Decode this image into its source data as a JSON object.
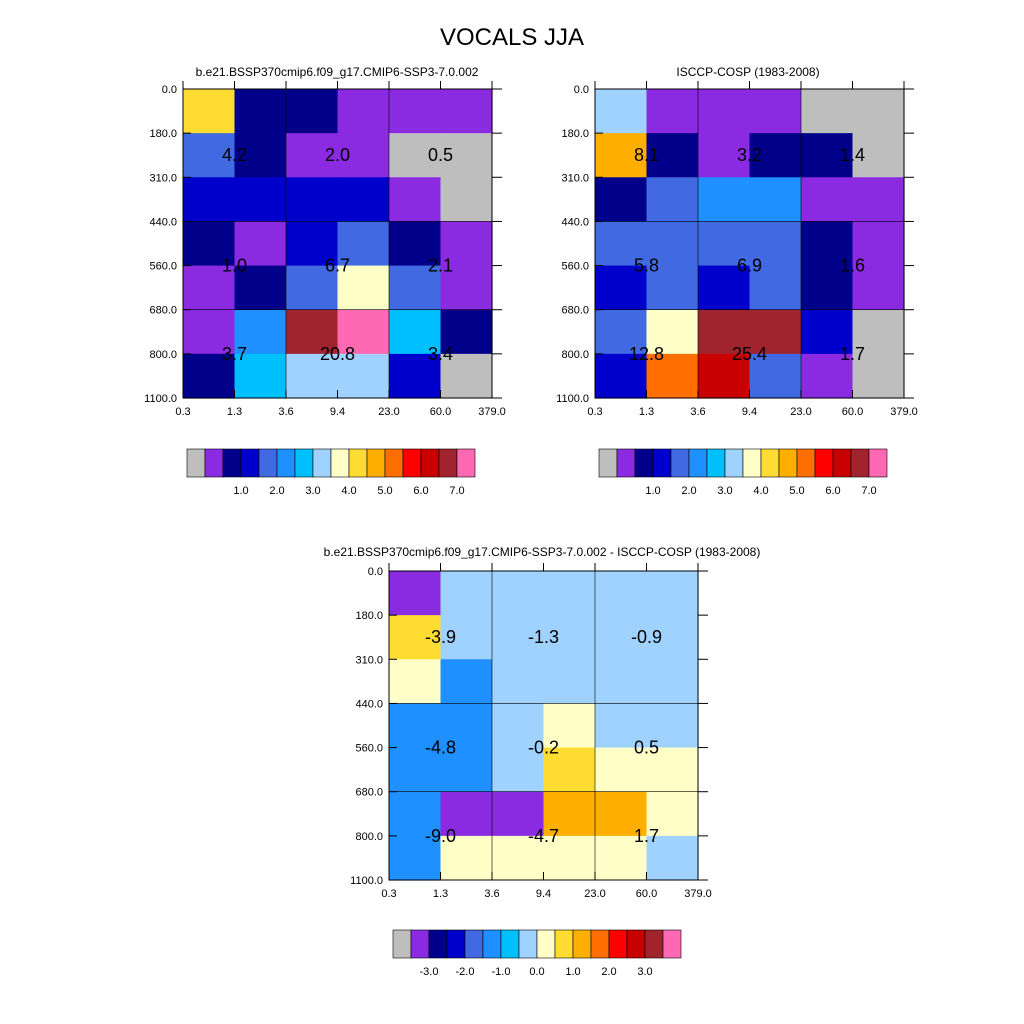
{
  "figure_title": "VOCALS JJA",
  "chart_data": [
    {
      "type": "heatmap",
      "title": "b.e21.BSSP370cmip6.f09_g17.CMIP6-SSP3-7.0.002",
      "x_tick_labels": [
        "0.3",
        "1.3",
        "3.6",
        "9.4",
        "23.0",
        "60.0",
        "379.0"
      ],
      "y_tick_labels": [
        "0.0",
        "180.0",
        "310.0",
        "440.0",
        "560.0",
        "680.0",
        "800.0",
        "1100.0"
      ],
      "bin_values": [
        [
          4.3,
          0.6,
          0.6,
          0.2,
          0.2,
          0.4
        ],
        [
          1.6,
          0.6,
          0.4,
          0.3,
          0.1,
          0.1
        ],
        [
          1.1,
          1.0,
          1.4,
          1.3,
          0.3,
          0.1
        ],
        [
          0.5,
          0.2,
          1.1,
          1.8,
          0.8,
          0.3
        ],
        [
          0.2,
          0.5,
          1.7,
          3.8,
          1.6,
          0.4
        ],
        [
          0.3,
          2.3,
          6.5,
          7.5,
          2.5,
          0.5
        ],
        [
          0.5,
          2.5,
          3.1,
          3.3,
          1.3,
          0.1
        ]
      ],
      "group_labels": [
        [
          "4.2",
          "2.0",
          "0.5"
        ],
        [
          "1.0",
          "6.7",
          "2.1"
        ],
        [
          "3.7",
          "20.8",
          "3.4"
        ]
      ],
      "colorbar": {
        "colors": [
          "#bebebe",
          "#8a2be2",
          "#00008b",
          "#0000cd",
          "#4169e1",
          "#1e90ff",
          "#00bfff",
          "#a0d2ff",
          "#ffffc8",
          "#ffdc32",
          "#ffaf00",
          "#ff6e00",
          "#ff0000",
          "#c80000",
          "#a0232d",
          "#ff69b4"
        ],
        "levels": [
          0.2,
          0.5,
          1.0,
          1.5,
          2.0,
          2.5,
          3.0,
          3.5,
          4.0,
          4.5,
          5.0,
          5.5,
          6.0,
          6.5,
          7.0
        ],
        "tick_labels": [
          "1.0",
          "2.0",
          "3.0",
          "4.0",
          "5.0",
          "6.0",
          "7.0"
        ],
        "tick_levels": [
          1,
          2,
          3,
          4,
          5,
          6,
          7
        ]
      }
    },
    {
      "type": "heatmap",
      "title": "ISCCP-COSP (1983-2008)",
      "x_tick_labels": [
        "0.3",
        "1.3",
        "3.6",
        "9.4",
        "23.0",
        "60.0",
        "379.0"
      ],
      "y_tick_labels": [
        "0.0",
        "180.0",
        "310.0",
        "440.0",
        "560.0",
        "680.0",
        "800.0",
        "1100.0"
      ],
      "bin_values": [
        [
          3.4,
          0.2,
          0.3,
          0.2,
          0.1,
          0.1
        ],
        [
          4.5,
          0.8,
          0.4,
          0.6,
          0.6,
          0.1
        ],
        [
          0.6,
          1.8,
          2.2,
          2.2,
          0.4,
          0.4
        ],
        [
          1.5,
          1.6,
          1.6,
          1.6,
          0.5,
          0.4
        ],
        [
          1.4,
          1.7,
          1.4,
          1.6,
          0.6,
          0.3
        ],
        [
          1.7,
          3.8,
          6.6,
          6.5,
          1.3,
          0.1
        ],
        [
          1.3,
          5.4,
          6.0,
          1.8,
          0.4,
          0.1
        ]
      ],
      "group_labels": [
        [
          "8.1",
          "3.2",
          "1.4"
        ],
        [
          "5.8",
          "6.9",
          "1.6"
        ],
        [
          "12.8",
          "25.4",
          "1.7"
        ]
      ],
      "colorbar": {
        "colors": [
          "#bebebe",
          "#8a2be2",
          "#00008b",
          "#0000cd",
          "#4169e1",
          "#1e90ff",
          "#00bfff",
          "#a0d2ff",
          "#ffffc8",
          "#ffdc32",
          "#ffaf00",
          "#ff6e00",
          "#ff0000",
          "#c80000",
          "#a0232d",
          "#ff69b4"
        ],
        "levels": [
          0.2,
          0.5,
          1.0,
          1.5,
          2.0,
          2.5,
          3.0,
          3.5,
          4.0,
          4.5,
          5.0,
          5.5,
          6.0,
          6.5,
          7.0
        ],
        "tick_labels": [
          "1.0",
          "2.0",
          "3.0",
          "4.0",
          "5.0",
          "6.0",
          "7.0"
        ],
        "tick_levels": [
          1,
          2,
          3,
          4,
          5,
          6,
          7
        ]
      }
    },
    {
      "type": "heatmap",
      "title": "b.e21.BSSP370cmip6.f09_g17.CMIP6-SSP3-7.0.002 - ISCCP-COSP (1983-2008)",
      "x_tick_labels": [
        "0.3",
        "1.3",
        "3.6",
        "9.4",
        "23.0",
        "60.0",
        "379.0"
      ],
      "y_tick_labels": [
        "0.0",
        "180.0",
        "310.0",
        "440.0",
        "560.0",
        "680.0",
        "800.0",
        "1100.0"
      ],
      "bin_values": [
        [
          -3.3,
          -0.3,
          -0.3,
          -0.2,
          -0.2,
          -0.2
        ],
        [
          0.7,
          -0.3,
          -0.3,
          -0.3,
          -0.3,
          -0.3
        ],
        [
          0.3,
          -1.1,
          -0.3,
          -0.3,
          -0.3,
          -0.3
        ],
        [
          -1.2,
          -1.2,
          -0.3,
          0.2,
          -0.3,
          -0.3
        ],
        [
          -1.2,
          -1.2,
          -0.3,
          0.7,
          0.2,
          0.2
        ],
        [
          -1.2,
          -3.3,
          -3.3,
          1.2,
          1.2,
          0.2
        ],
        [
          -1.2,
          0.0,
          0.0,
          0.2,
          0.2,
          -0.3
        ]
      ],
      "group_labels": [
        [
          "-3.9",
          "-1.3",
          "-0.9"
        ],
        [
          "-4.8",
          "-0.2",
          "0.5"
        ],
        [
          "-9.0",
          "-4.7",
          "1.7"
        ]
      ],
      "colorbar": {
        "colors": [
          "#bebebe",
          "#8a2be2",
          "#00008b",
          "#0000cd",
          "#4169e1",
          "#1e90ff",
          "#00bfff",
          "#a0d2ff",
          "#ffffc8",
          "#ffdc32",
          "#ffaf00",
          "#ff6e00",
          "#ff0000",
          "#c80000",
          "#a0232d",
          "#ff69b4"
        ],
        "levels": [
          -3.5,
          -3.0,
          -2.5,
          -2.0,
          -1.5,
          -1.0,
          -0.5,
          0.0,
          0.5,
          1.0,
          1.5,
          2.0,
          2.5,
          3.0,
          3.5
        ],
        "tick_labels": [
          "-3.0",
          "-2.0",
          "-1.0",
          "0.0",
          "1.0",
          "2.0",
          "3.0"
        ],
        "tick_levels": [
          -3,
          -2,
          -1,
          0,
          1,
          2,
          3
        ]
      }
    }
  ]
}
